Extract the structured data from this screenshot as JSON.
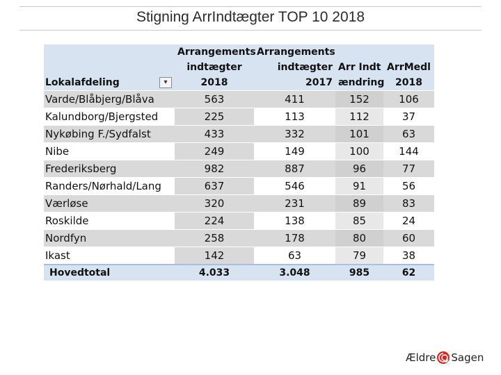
{
  "slide": {
    "title": "Stigning ArrIndtægter TOP 10 2018"
  },
  "table": {
    "headers": [
      [
        "",
        "",
        "Lokalafdeling"
      ],
      [
        "Arrangements",
        "indtægter",
        "2018"
      ],
      [
        "Arrangements",
        "indtægter",
        "2017"
      ],
      [
        "",
        "Arr Indt",
        "ændring"
      ],
      [
        "",
        "ArrMedl",
        "2018"
      ]
    ],
    "rows": [
      [
        "Varde/Blåbjerg/Blåva",
        "563",
        "411",
        "152",
        "106"
      ],
      [
        "Kalundborg/Bjergsted",
        "225",
        "113",
        "112",
        "37"
      ],
      [
        "Nykøbing F./Sydfalst",
        "433",
        "332",
        "101",
        "63"
      ],
      [
        "Nibe",
        "249",
        "149",
        "100",
        "144"
      ],
      [
        "Frederiksberg",
        "982",
        "887",
        "96",
        "77"
      ],
      [
        "Randers/Nørhald/Lang",
        "637",
        "546",
        "91",
        "56"
      ],
      [
        "Værløse",
        "320",
        "231",
        "89",
        "83"
      ],
      [
        "Roskilde",
        "224",
        "138",
        "85",
        "24"
      ],
      [
        "Nordfyn",
        "258",
        "178",
        "80",
        "60"
      ],
      [
        "Ikast",
        "142",
        "63",
        "79",
        "38"
      ]
    ],
    "total": [
      "Hovedtotal",
      "4.033",
      "3.048",
      "985",
      "62"
    ]
  },
  "logo": {
    "left_text": "Ældre",
    "right_text": "Sagen",
    "accent": "#d9251d"
  }
}
